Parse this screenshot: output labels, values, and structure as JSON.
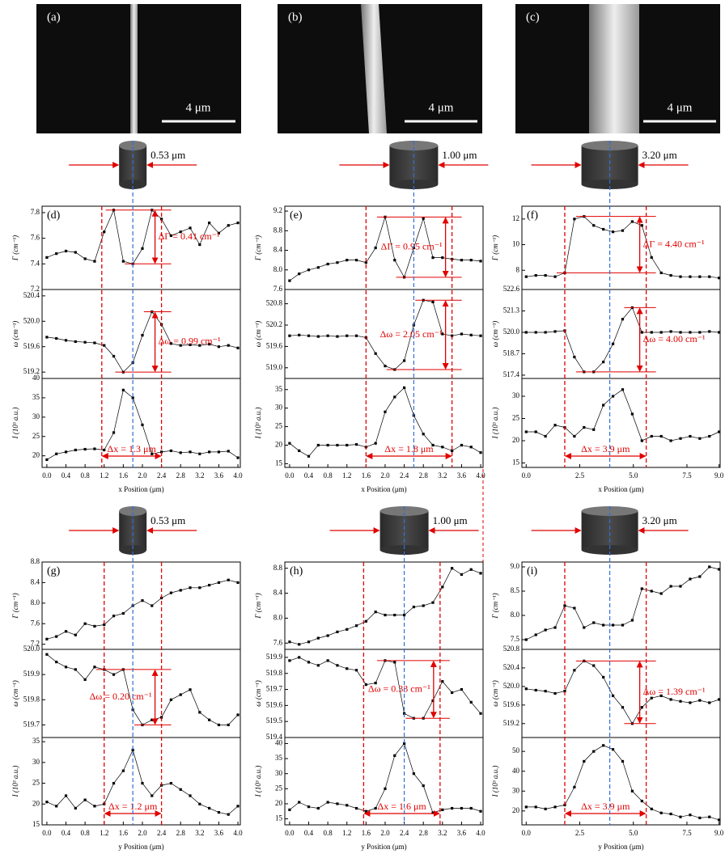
{
  "images": [
    {
      "label": "(a)",
      "scale_bar": "4 μm"
    },
    {
      "label": "(b)",
      "scale_bar": "4 μm"
    },
    {
      "label": "(c)",
      "scale_bar": "4 μm"
    }
  ],
  "cylinders": [
    {
      "diameter": "0.53 μm"
    },
    {
      "diameter": "1.00 μm"
    },
    {
      "diameter": "3.20 μm"
    },
    {
      "diameter": "0.53 μm"
    },
    {
      "diameter": "1.00 μm"
    },
    {
      "diameter": "3.20 μm"
    }
  ],
  "chart_data": [
    {
      "type": "line",
      "label": "(d)",
      "xlabel": "x Position (μm)",
      "xlim": [
        -0.1,
        4.05
      ],
      "xticks": [
        {
          "value": 0,
          "label": "0.0"
        },
        0.4,
        0.8,
        1.2,
        1.6,
        {
          "value": 2,
          "label": "2.0"
        },
        2.4,
        2.8,
        3.2,
        3.6,
        {
          "value": 4,
          "label": "4.0"
        }
      ],
      "x": [
        0,
        0.2,
        0.4,
        0.6,
        0.8,
        1,
        1.2,
        1.4,
        1.6,
        1.8,
        2,
        2.2,
        2.4,
        2.6,
        2.8,
        3,
        3.2,
        3.4,
        3.6,
        3.8,
        4
      ],
      "markers": {
        "left": 1.15,
        "center": 1.8,
        "right": 2.4
      },
      "panels": [
        {
          "ylabel": "Γ (cm⁻¹)",
          "ylim": [
            7.2,
            7.85
          ],
          "yticks": [
            7.2,
            7.4,
            7.6,
            7.8
          ],
          "values": [
            7.45,
            7.48,
            7.5,
            7.49,
            7.44,
            7.42,
            7.65,
            7.82,
            7.42,
            7.4,
            7.52,
            7.82,
            7.75,
            7.62,
            7.65,
            7.68,
            7.55,
            7.72,
            7.64,
            7.7,
            7.72
          ],
          "annotation": "ΔΓ = 0.41 cm⁻¹"
        },
        {
          "ylabel": "ω (cm⁻¹)",
          "ylim": [
            519.1,
            520.5
          ],
          "yticks": [
            519.2,
            519.6,
            {
              "value": 520,
              "label": "520.0"
            },
            520.4
          ],
          "values": [
            519.75,
            519.73,
            519.7,
            519.68,
            519.67,
            519.66,
            519.62,
            519.45,
            519.2,
            519.35,
            519.78,
            520.15,
            519.95,
            519.65,
            519.62,
            519.63,
            519.62,
            519.64,
            519.6,
            519.62,
            519.58
          ],
          "annotation": "Δω = 0.99 cm⁻¹"
        },
        {
          "ylabel": "I (10³ a.u.)",
          "ylim": [
            17,
            40
          ],
          "yticks": [
            20,
            25,
            30,
            35,
            40
          ],
          "values": [
            19,
            20.5,
            21,
            21.5,
            21.7,
            21.8,
            21.5,
            26,
            37,
            35,
            28,
            20.5,
            21,
            21.3,
            20.8,
            21,
            20.5,
            21,
            21,
            21.2,
            19.5
          ],
          "annotation": "Δx = 1.3 μm"
        }
      ]
    },
    {
      "type": "line",
      "label": "(e)",
      "xlabel": "x Position (μm)",
      "xlim": [
        -0.1,
        4.05
      ],
      "xticks": [
        {
          "value": 0,
          "label": "0.0"
        },
        0.4,
        0.8,
        1.2,
        1.6,
        {
          "value": 2,
          "label": "2.0"
        },
        2.4,
        2.8,
        3.2,
        3.6,
        {
          "value": 4,
          "label": "4.0"
        }
      ],
      "x": [
        0,
        0.2,
        0.4,
        0.6,
        0.8,
        1,
        1.2,
        1.4,
        1.6,
        1.8,
        2,
        2.2,
        2.4,
        2.6,
        2.8,
        3,
        3.2,
        3.4,
        3.6,
        3.8,
        4
      ],
      "markers": {
        "left": 1.6,
        "center": 2.6,
        "right": 3.4
      },
      "panels": [
        {
          "ylabel": "Γ (cm⁻¹)",
          "ylim": [
            7.6,
            9.3
          ],
          "yticks": [
            7.6,
            {
              "value": 8,
              "label": "8.0"
            },
            8.4,
            8.8,
            9.2
          ],
          "values": [
            7.78,
            7.92,
            8,
            8.05,
            8.12,
            8.15,
            8.2,
            8.2,
            8.15,
            8.45,
            9.08,
            8.2,
            7.85,
            8.45,
            9.05,
            8.25,
            8.25,
            8.22,
            8.2,
            8.2,
            8.18
          ],
          "annotation": "ΔΓ = 0.95 cm⁻¹"
        },
        {
          "ylabel": "ω (cm⁻¹)",
          "ylim": [
            518.7,
            521.2
          ],
          "yticks": [
            {
              "value": 519,
              "label": "519.0"
            },
            519.6,
            520.2,
            520.8
          ],
          "values": [
            519.9,
            519.92,
            519.9,
            519.88,
            519.9,
            519.88,
            519.9,
            519.9,
            519.85,
            519.4,
            519.05,
            518.95,
            519.2,
            520.2,
            520.9,
            520.85,
            519.95,
            519.9,
            519.95,
            519.92,
            519.9
          ],
          "annotation": "Δω = 2.05 cm⁻¹"
        },
        {
          "ylabel": "I (10³ a.u.)",
          "ylim": [
            14,
            38
          ],
          "yticks": [
            15,
            20,
            25,
            30,
            35
          ],
          "values": [
            20.5,
            18.5,
            17,
            20,
            20,
            20,
            20,
            20.2,
            19.5,
            20.5,
            29,
            33,
            35.5,
            28,
            23,
            20,
            19.5,
            18.5,
            20,
            19.5,
            18
          ],
          "annotation": "Δx = 1.8 μm"
        }
      ]
    },
    {
      "type": "line",
      "label": "(f)",
      "xlabel": "x Position (μm)",
      "xlim": [
        -0.2,
        9.05
      ],
      "xticks": [
        {
          "value": 0,
          "label": "0.0"
        },
        2.5,
        {
          "value": 5,
          "label": "5.0"
        },
        7.5,
        {
          "value": 9,
          "label": "9.0"
        }
      ],
      "x": [
        0,
        0.45,
        0.9,
        1.35,
        1.8,
        2.25,
        2.7,
        3.15,
        3.6,
        4.05,
        4.5,
        4.95,
        5.4,
        5.85,
        6.3,
        6.75,
        7.2,
        7.65,
        8.1,
        8.55,
        9
      ],
      "markers": {
        "left": 1.8,
        "center": 3.9,
        "right": 5.6
      },
      "panels": [
        {
          "ylabel": "Γ (cm⁻¹)",
          "ylim": [
            6.5,
            13
          ],
          "yticks": [
            8,
            10,
            12
          ],
          "values": [
            7.5,
            7.6,
            7.6,
            7.5,
            7.8,
            12,
            12.2,
            11.5,
            11.2,
            11,
            11.1,
            11.8,
            11.5,
            9,
            7.8,
            7.6,
            7.5,
            7.5,
            7.5,
            7.5,
            7.4
          ],
          "annotation": "ΔΓ = 4.40 cm⁻¹"
        },
        {
          "ylabel": "ω (cm⁻¹)",
          "ylim": [
            517.2,
            522.6
          ],
          "yticks": [
            517.4,
            518.7,
            {
              "value": 520,
              "label": "520.0"
            },
            521.3,
            522.6
          ],
          "values": [
            520,
            520,
            520,
            520.05,
            520.1,
            518.5,
            517.6,
            517.6,
            518.2,
            519.3,
            520.8,
            521.5,
            520,
            520,
            520,
            520.05,
            520,
            520,
            520,
            520.05,
            520
          ],
          "annotation": "Δω = 4.00 cm⁻¹"
        },
        {
          "ylabel": "I (10³ a.u.)",
          "ylim": [
            14,
            34
          ],
          "yticks": [
            15,
            20,
            25,
            30
          ],
          "values": [
            22,
            22,
            21,
            23.5,
            23,
            21,
            23,
            22.5,
            28,
            30,
            31.5,
            26,
            20,
            21,
            21,
            20,
            20.5,
            21,
            20.5,
            21,
            22
          ],
          "annotation": "Δx = 3.9 μm"
        }
      ]
    },
    {
      "type": "line",
      "label": "(g)",
      "xlabel": "y Position (μm)",
      "xlim": [
        -0.1,
        4.05
      ],
      "xticks": [
        {
          "value": 0,
          "label": "0.0"
        },
        0.4,
        0.8,
        1.2,
        1.6,
        {
          "value": 2,
          "label": "2.0"
        },
        2.4,
        2.8,
        3.2,
        3.6,
        {
          "value": 4,
          "label": "4.0"
        }
      ],
      "x": [
        0,
        0.2,
        0.4,
        0.6,
        0.8,
        1,
        1.2,
        1.4,
        1.6,
        1.8,
        2,
        2.2,
        2.4,
        2.6,
        2.8,
        3,
        3.2,
        3.4,
        3.6,
        3.8,
        4
      ],
      "markers": {
        "left": 1.2,
        "center": 1.8,
        "right": 2.4
      },
      "panels": [
        {
          "ylabel": "Γ (cm⁻¹)",
          "ylim": [
            7.1,
            8.8
          ],
          "yticks": [
            7.2,
            7.6,
            {
              "value": 8,
              "label": "8.0"
            },
            8.4,
            8.8
          ],
          "values": [
            7.3,
            7.35,
            7.45,
            7.38,
            7.6,
            7.55,
            7.58,
            7.75,
            7.8,
            7.95,
            8.05,
            7.95,
            8.1,
            8.2,
            8.25,
            8.3,
            8.3,
            8.35,
            8.4,
            8.45,
            8.4
          ]
        },
        {
          "ylabel": "ω (cm⁻¹)",
          "ylim": [
            519.65,
            520
          ],
          "yticks": [
            519.7,
            519.8,
            519.9,
            {
              "value": 520,
              "label": "520.0"
            }
          ],
          "values": [
            519.98,
            519.95,
            519.93,
            519.92,
            519.88,
            519.93,
            519.92,
            519.9,
            519.92,
            519.76,
            519.7,
            519.72,
            519.73,
            519.8,
            519.82,
            519.84,
            519.75,
            519.72,
            519.7,
            519.7,
            519.74
          ],
          "annotation": "Δω = 0.20 cm⁻¹"
        },
        {
          "ylabel": "I (10³ a.u.)",
          "ylim": [
            15,
            36
          ],
          "yticks": [
            15,
            20,
            25,
            30,
            35
          ],
          "values": [
            20.5,
            19.5,
            22,
            19,
            21,
            19.5,
            20,
            25,
            28,
            33,
            25,
            22,
            24.5,
            25,
            23.5,
            22,
            20,
            19,
            18,
            17.5,
            19.5
          ],
          "annotation": "Δx = 1.2 μm"
        }
      ]
    },
    {
      "type": "line",
      "label": "(h)",
      "xlabel": "y Position (μm)",
      "xlim": [
        -0.1,
        4.05
      ],
      "xticks": [
        {
          "value": 0,
          "label": "0.0"
        },
        0.4,
        0.8,
        1.2,
        1.6,
        {
          "value": 2,
          "label": "2.0"
        },
        2.4,
        2.8,
        3.2,
        3.6,
        {
          "value": 4,
          "label": "4.0"
        }
      ],
      "x": [
        0,
        0.2,
        0.4,
        0.6,
        0.8,
        1,
        1.2,
        1.4,
        1.6,
        1.8,
        2,
        2.2,
        2.4,
        2.6,
        2.8,
        3,
        3.2,
        3.4,
        3.6,
        3.8,
        4
      ],
      "markers": {
        "left": 1.55,
        "center": 2.4,
        "right": 3.15
      },
      "panels": [
        {
          "ylabel": "Γ (cm⁻¹)",
          "ylim": [
            7.5,
            8.9
          ],
          "yticks": [
            7.6,
            {
              "value": 8,
              "label": "8.0"
            },
            8.4,
            8.8
          ],
          "values": [
            7.62,
            7.58,
            7.62,
            7.68,
            7.72,
            7.78,
            7.82,
            7.88,
            7.95,
            8.1,
            8.05,
            8.05,
            8.05,
            8.18,
            8.2,
            8.25,
            8.5,
            8.8,
            8.7,
            8.78,
            8.72
          ]
        },
        {
          "ylabel": "ω (cm⁻¹)",
          "ylim": [
            519.4,
            519.95
          ],
          "yticks": [
            519.4,
            519.5,
            519.6,
            519.7,
            519.8,
            519.9
          ],
          "values": [
            519.88,
            519.9,
            519.87,
            519.85,
            519.88,
            519.85,
            519.83,
            519.82,
            519.73,
            519.74,
            519.88,
            519.87,
            519.55,
            519.52,
            519.52,
            519.63,
            519.75,
            519.68,
            519.7,
            519.62,
            519.55
          ],
          "annotation": "Δω = 0.33 cm⁻¹"
        },
        {
          "ylabel": "I (10³ a.u.)",
          "ylim": [
            13,
            42
          ],
          "yticks": [
            15,
            20,
            25,
            30,
            35,
            40
          ],
          "values": [
            18,
            20.5,
            19,
            18.5,
            20.5,
            20,
            19.5,
            18.5,
            17.5,
            18.5,
            25,
            36,
            40,
            30,
            26,
            17,
            18,
            18.5,
            18.5,
            18.5,
            17.5
          ],
          "annotation": "Δx = 1.6 μm"
        }
      ]
    },
    {
      "type": "line",
      "label": "(i)",
      "xlabel": "y Position (μm)",
      "xlim": [
        -0.2,
        9.05
      ],
      "xticks": [
        {
          "value": 0,
          "label": "0.0"
        },
        2.5,
        {
          "value": 5,
          "label": "5.0"
        },
        7.5,
        {
          "value": 9,
          "label": "9.0"
        }
      ],
      "x": [
        0,
        0.45,
        0.9,
        1.35,
        1.8,
        2.25,
        2.7,
        3.15,
        3.6,
        4.05,
        4.5,
        4.95,
        5.4,
        5.85,
        6.3,
        6.75,
        7.2,
        7.65,
        8.1,
        8.55,
        9
      ],
      "markers": {
        "left": 1.8,
        "center": 3.9,
        "right": 5.6
      },
      "panels": [
        {
          "ylabel": "Γ (cm⁻¹)",
          "ylim": [
            7.3,
            9.1
          ],
          "yticks": [
            7.5,
            {
              "value": 8,
              "label": "8.0"
            },
            8.5,
            {
              "value": 9,
              "label": "9.0"
            }
          ],
          "values": [
            7.5,
            7.6,
            7.7,
            7.75,
            8.2,
            8.15,
            7.75,
            7.85,
            7.8,
            7.8,
            7.8,
            7.9,
            8.55,
            8.5,
            8.45,
            8.6,
            8.6,
            8.75,
            8.8,
            9,
            8.95
          ]
        },
        {
          "ylabel": "ω (cm⁻¹)",
          "ylim": [
            518.9,
            520.8
          ],
          "yticks": [
            519.2,
            519.6,
            {
              "value": 520,
              "label": "520.0"
            },
            520.4,
            520.8
          ],
          "values": [
            519.95,
            519.92,
            519.9,
            519.85,
            519.9,
            520.35,
            520.55,
            520.45,
            520.2,
            519.8,
            519.55,
            519.2,
            519.55,
            519.75,
            519.8,
            519.72,
            519.68,
            519.65,
            519.7,
            519.65,
            519.72
          ],
          "annotation": "Δω = 1.39 cm⁻¹"
        },
        {
          "ylabel": "I (10³ a.u.)",
          "ylim": [
            13,
            57
          ],
          "yticks": [
            20,
            30,
            40,
            50
          ],
          "values": [
            22,
            22,
            21,
            22,
            23,
            32,
            45,
            50,
            53,
            51,
            45,
            30,
            25,
            21,
            19,
            18.5,
            17,
            18,
            16.5,
            17,
            15.5
          ],
          "annotation": "Δx = 3.9 μm"
        }
      ]
    }
  ]
}
